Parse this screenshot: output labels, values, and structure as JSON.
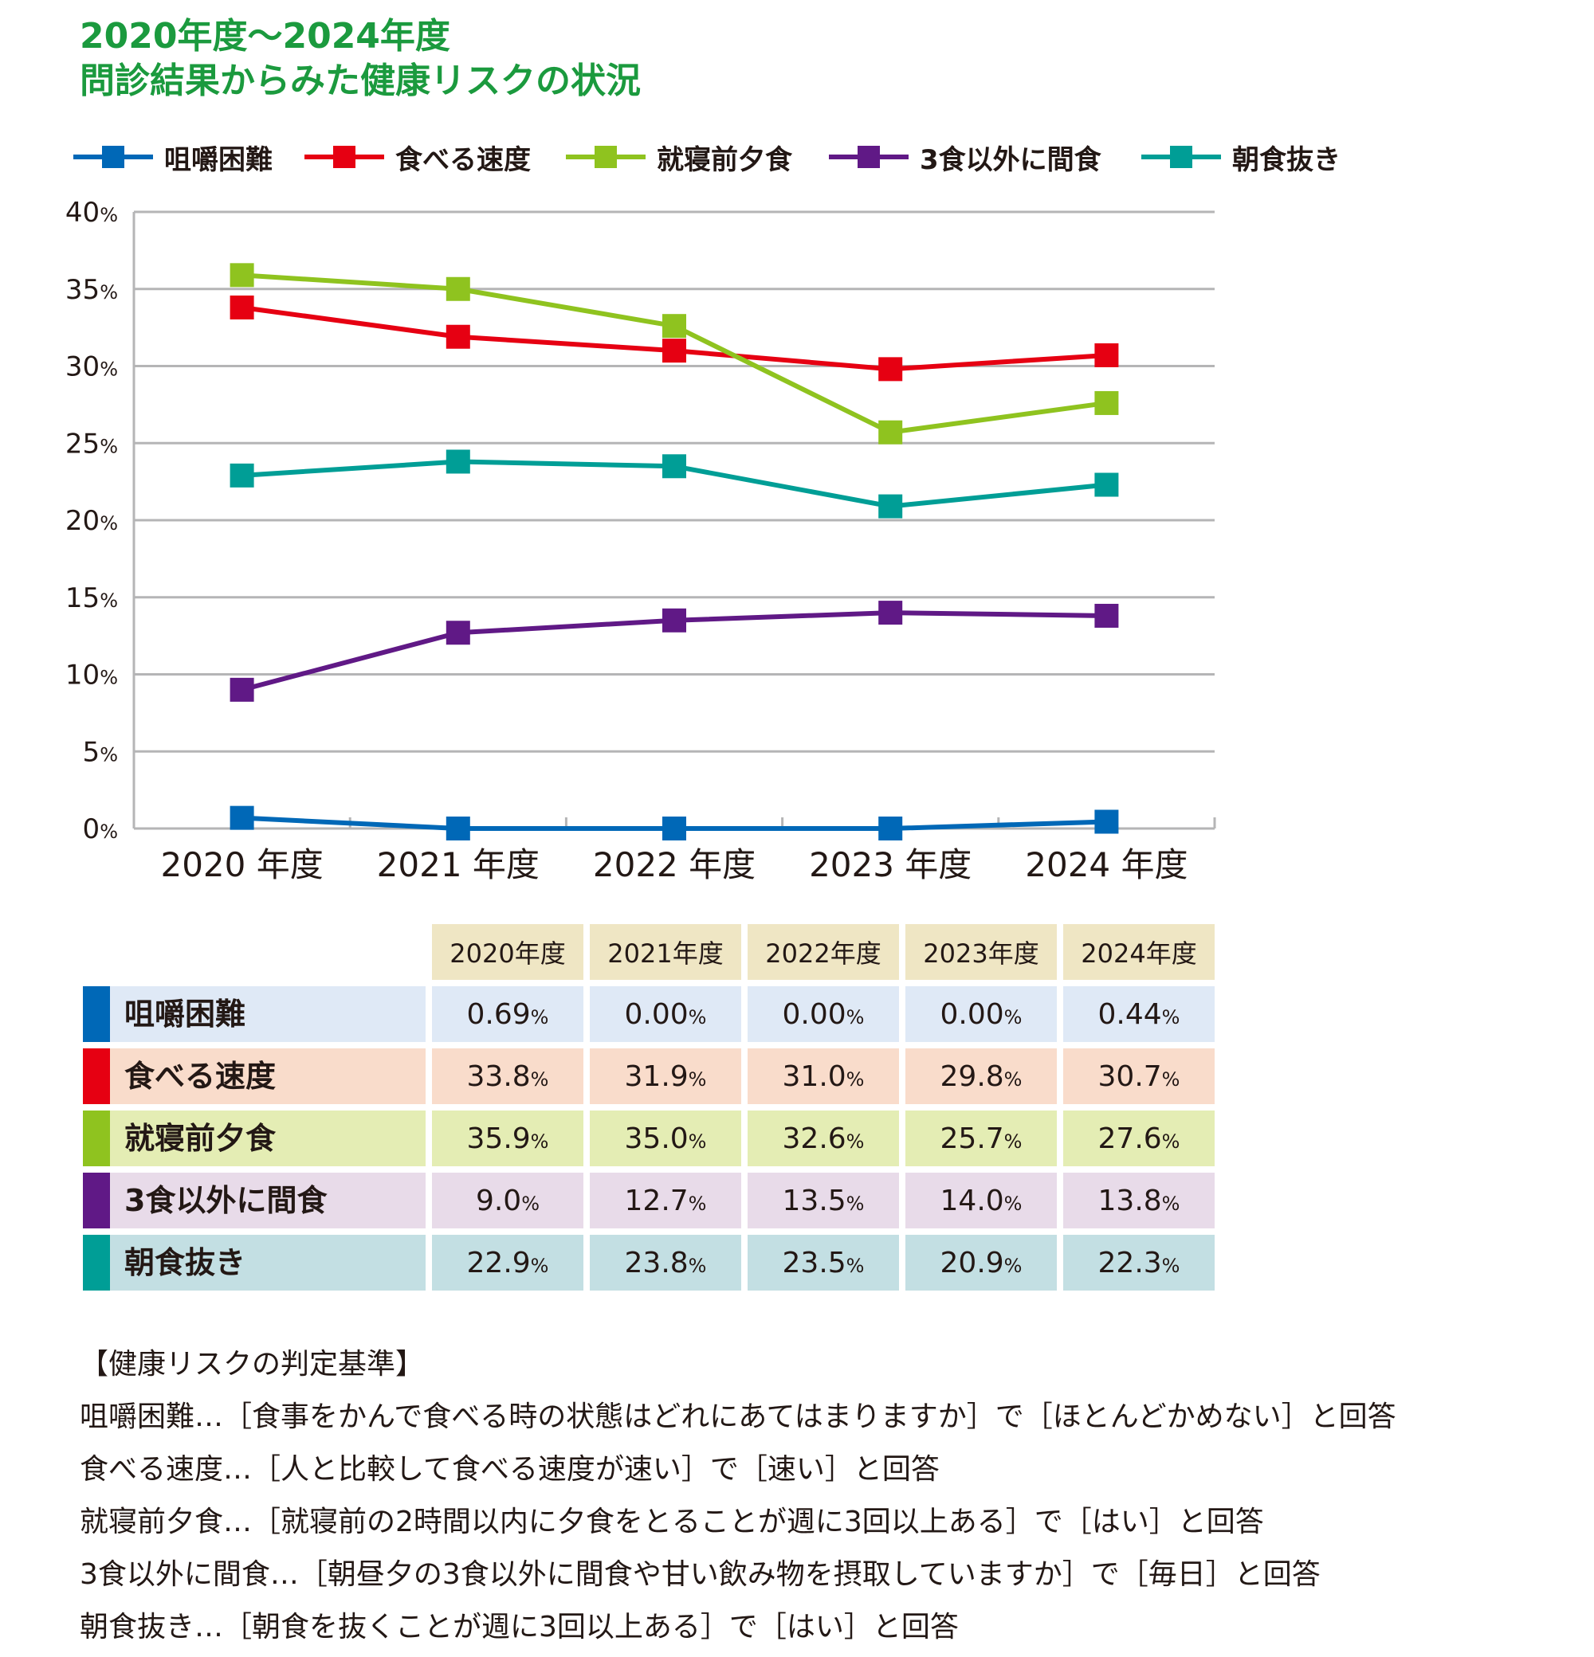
{
  "title": {
    "line1": "2020年度～2024年度",
    "line2": "問診結果からみた健康リスクの状況"
  },
  "legend": [
    {
      "label": "咀嚼困難",
      "color": "#0068b7"
    },
    {
      "label": "食べる速度",
      "color": "#e60012"
    },
    {
      "label": "就寝前夕食",
      "color": "#8fc31f"
    },
    {
      "label": "3食以外に間食",
      "color": "#601986"
    },
    {
      "label": "朝食抜き",
      "color": "#009e96"
    }
  ],
  "chart_data": {
    "type": "line",
    "categories": [
      "2020 年度",
      "2021 年度",
      "2022 年度",
      "2023 年度",
      "2024 年度"
    ],
    "ylim": [
      0,
      40
    ],
    "yticks": [
      0,
      5,
      10,
      15,
      20,
      25,
      30,
      35,
      40
    ],
    "ytick_unit": "%",
    "grid": true,
    "legend_position": "top",
    "series": [
      {
        "name": "咀嚼困難",
        "color": "#0068b7",
        "values": [
          0.69,
          0.0,
          0.0,
          0.0,
          0.44
        ]
      },
      {
        "name": "食べる速度",
        "color": "#e60012",
        "values": [
          33.8,
          31.9,
          31.0,
          29.8,
          30.7
        ]
      },
      {
        "name": "就寝前夕食",
        "color": "#8fc31f",
        "values": [
          35.9,
          35.0,
          32.6,
          25.7,
          27.6
        ]
      },
      {
        "name": "3食以外に間食",
        "color": "#601986",
        "values": [
          9.0,
          12.7,
          13.5,
          14.0,
          13.8
        ]
      },
      {
        "name": "朝食抜き",
        "color": "#009e96",
        "values": [
          22.9,
          23.8,
          23.5,
          20.9,
          22.3
        ]
      }
    ]
  },
  "table": {
    "headers": [
      "2020年度",
      "2021年度",
      "2022年度",
      "2023年度",
      "2024年度"
    ],
    "unit": "%",
    "rows": [
      {
        "name": "咀嚼困難",
        "bar_color": "#0068b7",
        "bg": "#dfe9f6",
        "values": [
          "0.69",
          "0.00",
          "0.00",
          "0.00",
          "0.44"
        ]
      },
      {
        "name": "食べる速度",
        "bar_color": "#e60012",
        "bg": "#f9dccb",
        "values": [
          "33.8",
          "31.9",
          "31.0",
          "29.8",
          "30.7"
        ]
      },
      {
        "name": "就寝前夕食",
        "bar_color": "#8fc31f",
        "bg": "#e4edb4",
        "values": [
          "35.9",
          "35.0",
          "32.6",
          "25.7",
          "27.6"
        ]
      },
      {
        "name": "3食以外に間食",
        "bar_color": "#601986",
        "bg": "#e8dbe9",
        "values": [
          "9.0",
          "12.7",
          "13.5",
          "14.0",
          "13.8"
        ]
      },
      {
        "name": "朝食抜き",
        "bar_color": "#009e96",
        "bg": "#c3dfe3",
        "values": [
          "22.9",
          "23.8",
          "23.5",
          "20.9",
          "22.3"
        ]
      }
    ]
  },
  "criteria": {
    "heading": "【健康リスクの判定基準】",
    "lines": [
      "咀嚼困難…［食事をかんで食べる時の状態はどれにあてはまりますか］で［ほとんどかめない］と回答",
      "食べる速度…［人と比較して食べる速度が速い］で［速い］と回答",
      "就寝前夕食…［就寝前の2時間以内に夕食をとることが週に3回以上ある］で［はい］と回答",
      "3食以外に間食…［朝昼夕の3食以外に間食や甘い飲み物を摂取していますか］で［毎日］と回答",
      "朝食抜き…［朝食を抜くことが週に3回以上ある］で［はい］と回答"
    ]
  }
}
